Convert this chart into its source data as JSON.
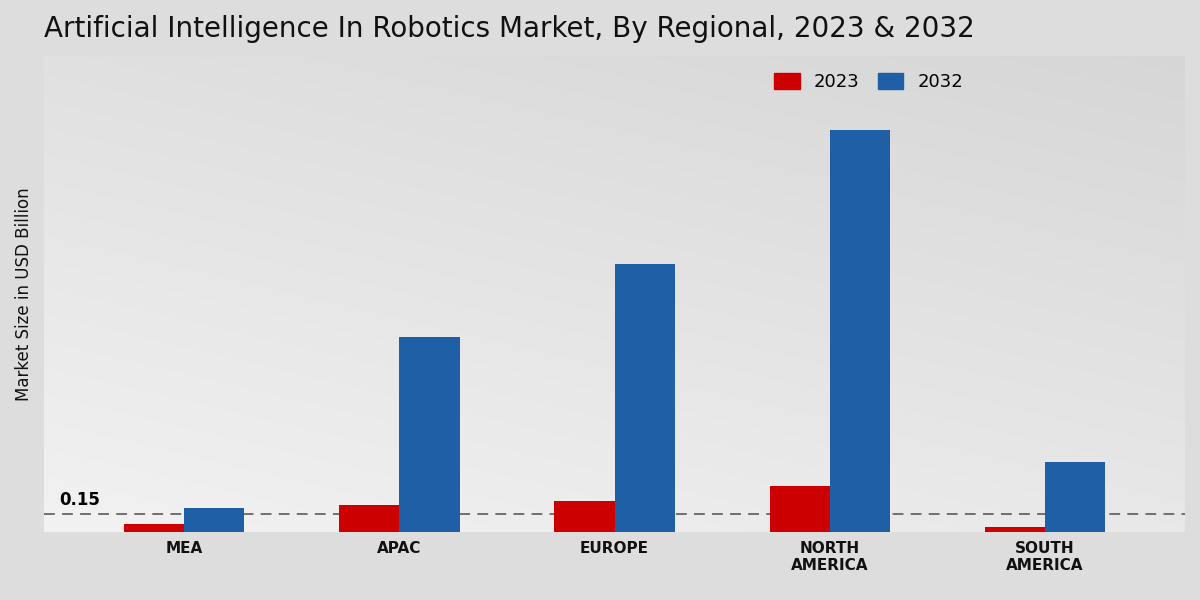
{
  "title": "Artificial Intelligence In Robotics Market, By Regional, 2023 & 2032",
  "ylabel": "Market Size in USD Billion",
  "categories": [
    "MEA",
    "APAC",
    "EUROPE",
    "NORTH\nAMERICA",
    "SOUTH\nAMERICA"
  ],
  "values_2023": [
    0.07,
    0.22,
    0.26,
    0.38,
    0.04
  ],
  "values_2032": [
    0.2,
    1.6,
    2.2,
    3.3,
    0.58
  ],
  "color_2023": "#cc0000",
  "color_2032": "#1f5fa6",
  "dashed_line_y": 0.15,
  "dashed_line_label": "0.15",
  "legend_labels": [
    "2023",
    "2032"
  ],
  "ylim": [
    0,
    3.9
  ],
  "bar_width": 0.28,
  "title_fontsize": 20,
  "label_fontsize": 12,
  "tick_fontsize": 11,
  "legend_fontsize": 13
}
